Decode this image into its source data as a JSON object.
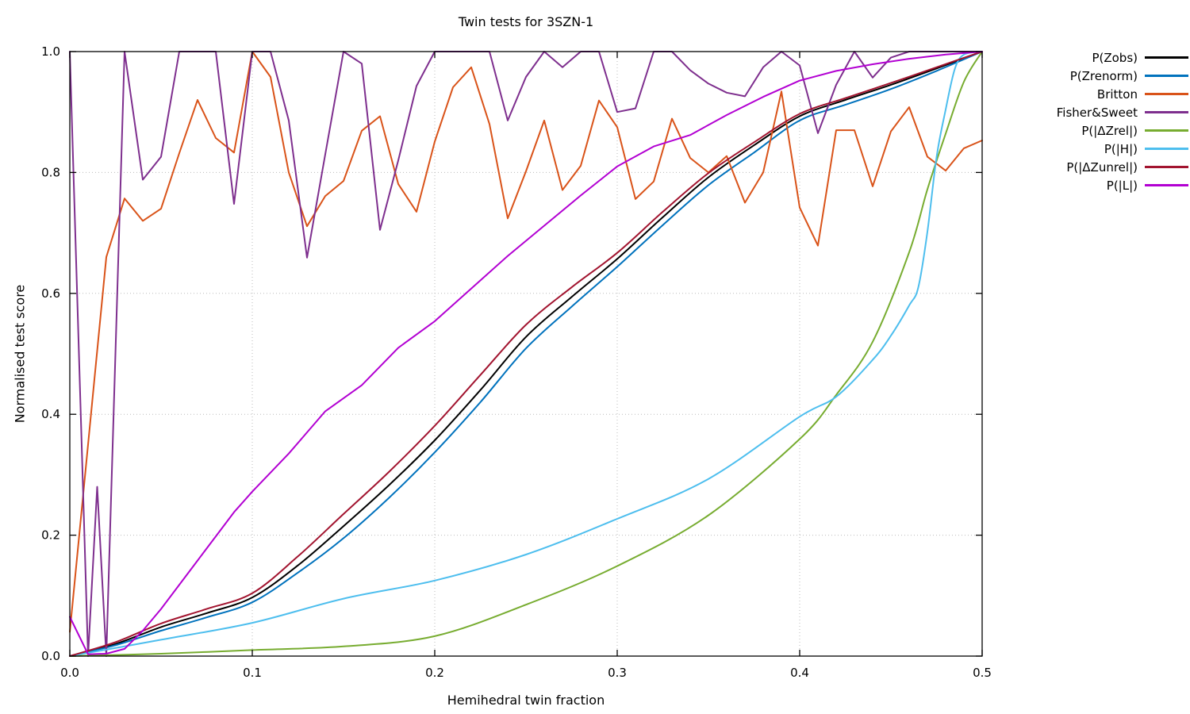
{
  "chart_data": {
    "type": "line",
    "title": "Twin tests for 3SZN-1",
    "xlabel": "Hemihedral twin fraction",
    "ylabel": "Normalised test score",
    "xlim": [
      0,
      0.5
    ],
    "ylim": [
      0,
      1
    ],
    "xtick_values": [
      0,
      0.1,
      0.2,
      0.3,
      0.4,
      0.5
    ],
    "xtick_labels": [
      "0.0",
      "0.1",
      "0.2",
      "0.3",
      "0.4",
      "0.5"
    ],
    "ytick_values": [
      0,
      0.2,
      0.4,
      0.6,
      0.8,
      1.0
    ],
    "ytick_labels": [
      "0.0",
      "0.2",
      "0.4",
      "0.6",
      "0.8",
      "1.0"
    ],
    "grid": true,
    "grid_style": "dotted",
    "grid_color": "#bbbbbb",
    "legend_position": "right-outside",
    "background": "#ffffff",
    "series": [
      {
        "name": "P(Zobs)",
        "color": "#000000",
        "smooth": true,
        "x": [
          0,
          0.025,
          0.05,
          0.075,
          0.1,
          0.125,
          0.15,
          0.175,
          0.2,
          0.225,
          0.25,
          0.275,
          0.3,
          0.325,
          0.35,
          0.375,
          0.4,
          0.425,
          0.45,
          0.475,
          0.5
        ],
        "y": [
          0,
          0.02,
          0.048,
          0.071,
          0.097,
          0.15,
          0.215,
          0.283,
          0.357,
          0.44,
          0.528,
          0.594,
          0.657,
          0.726,
          0.792,
          0.845,
          0.893,
          0.92,
          0.945,
          0.972,
          1.0
        ]
      },
      {
        "name": "P(Zrenorm)",
        "color": "#0072bd",
        "smooth": true,
        "x": [
          0,
          0.025,
          0.05,
          0.075,
          0.1,
          0.125,
          0.15,
          0.175,
          0.2,
          0.225,
          0.25,
          0.275,
          0.3,
          0.325,
          0.35,
          0.375,
          0.4,
          0.425,
          0.45,
          0.475,
          0.5
        ],
        "y": [
          0,
          0.018,
          0.042,
          0.064,
          0.089,
          0.138,
          0.195,
          0.262,
          0.337,
          0.42,
          0.509,
          0.578,
          0.644,
          0.713,
          0.779,
          0.833,
          0.886,
          0.912,
          0.938,
          0.968,
          1.0
        ]
      },
      {
        "name": "Britton",
        "color": "#d95319",
        "smooth": false,
        "x": [
          0,
          0.01,
          0.02,
          0.03,
          0.04,
          0.05,
          0.06,
          0.07,
          0.08,
          0.09,
          0.1,
          0.11,
          0.12,
          0.13,
          0.14,
          0.15,
          0.16,
          0.17,
          0.18,
          0.19,
          0.2,
          0.21,
          0.22,
          0.23,
          0.24,
          0.25,
          0.26,
          0.27,
          0.28,
          0.29,
          0.3,
          0.31,
          0.32,
          0.33,
          0.34,
          0.35,
          0.36,
          0.37,
          0.38,
          0.39,
          0.4,
          0.41,
          0.42,
          0.43,
          0.44,
          0.45,
          0.46,
          0.47,
          0.48,
          0.49,
          0.5
        ],
        "y": [
          0.04,
          0.35,
          0.66,
          0.757,
          0.72,
          0.74,
          0.832,
          0.92,
          0.857,
          0.833,
          1.0,
          0.958,
          0.8,
          0.711,
          0.761,
          0.786,
          0.869,
          0.893,
          0.781,
          0.735,
          0.851,
          0.941,
          0.974,
          0.88,
          0.724,
          0.802,
          0.886,
          0.771,
          0.811,
          0.919,
          0.875,
          0.756,
          0.785,
          0.889,
          0.824,
          0.8,
          0.827,
          0.75,
          0.8,
          0.934,
          0.742,
          0.679,
          0.87,
          0.87,
          0.777,
          0.868,
          0.908,
          0.826,
          0.803,
          0.84,
          0.853
        ]
      },
      {
        "name": "Fisher&Sweet",
        "color": "#7e2f8e",
        "smooth": false,
        "x": [
          0,
          0.01,
          0.015,
          0.02,
          0.03,
          0.04,
          0.05,
          0.06,
          0.07,
          0.08,
          0.09,
          0.1,
          0.11,
          0.12,
          0.13,
          0.14,
          0.15,
          0.16,
          0.17,
          0.18,
          0.19,
          0.2,
          0.21,
          0.22,
          0.23,
          0.24,
          0.25,
          0.26,
          0.27,
          0.28,
          0.29,
          0.3,
          0.31,
          0.32,
          0.33,
          0.34,
          0.35,
          0.36,
          0.37,
          0.38,
          0.39,
          0.4,
          0.41,
          0.42,
          0.43,
          0.44,
          0.45,
          0.46,
          0.47,
          0.48,
          0.49,
          0.5
        ],
        "y": [
          1.0,
          0.0,
          0.28,
          0.0,
          1.0,
          0.788,
          0.826,
          1.0,
          1.0,
          1.0,
          0.748,
          1.0,
          1.0,
          0.886,
          0.659,
          0.83,
          1.0,
          0.98,
          0.705,
          0.82,
          0.943,
          1.0,
          1.0,
          1.0,
          1.0,
          0.886,
          0.958,
          1.0,
          0.974,
          1.0,
          1.0,
          0.9,
          0.906,
          1.0,
          1.0,
          0.969,
          0.947,
          0.932,
          0.926,
          0.974,
          1.0,
          0.977,
          0.865,
          0.945,
          1.0,
          0.957,
          0.99,
          1.0,
          1.0,
          1.0,
          1.0,
          1.0
        ]
      },
      {
        "name": "P(|ΔZrel|)",
        "color": "#77ac30",
        "smooth": true,
        "x": [
          0,
          0.05,
          0.1,
          0.15,
          0.2,
          0.25,
          0.3,
          0.35,
          0.4,
          0.42,
          0.44,
          0.46,
          0.47,
          0.48,
          0.49,
          0.5
        ],
        "y": [
          0,
          0.004,
          0.01,
          0.016,
          0.033,
          0.085,
          0.149,
          0.233,
          0.359,
          0.432,
          0.52,
          0.668,
          0.772,
          0.864,
          0.95,
          1.0
        ]
      },
      {
        "name": "P(|H|)",
        "color": "#4dbeee",
        "smooth": true,
        "x": [
          0,
          0.05,
          0.1,
          0.15,
          0.2,
          0.25,
          0.3,
          0.35,
          0.4,
          0.42,
          0.44,
          0.45,
          0.46,
          0.465,
          0.47,
          0.475,
          0.48,
          0.485,
          0.49,
          0.5
        ],
        "y": [
          0,
          0.027,
          0.055,
          0.095,
          0.125,
          0.168,
          0.227,
          0.293,
          0.396,
          0.429,
          0.49,
          0.53,
          0.58,
          0.61,
          0.702,
          0.825,
          0.904,
          0.971,
          0.995,
          1.0
        ]
      },
      {
        "name": "P(|ΔZunrel|)",
        "color": "#a2142f",
        "smooth": true,
        "x": [
          0,
          0.025,
          0.05,
          0.075,
          0.1,
          0.125,
          0.15,
          0.175,
          0.2,
          0.225,
          0.25,
          0.275,
          0.3,
          0.325,
          0.35,
          0.375,
          0.4,
          0.425,
          0.45,
          0.475,
          0.5
        ],
        "y": [
          0,
          0.023,
          0.054,
          0.078,
          0.104,
          0.165,
          0.235,
          0.305,
          0.381,
          0.465,
          0.548,
          0.61,
          0.667,
          0.735,
          0.799,
          0.85,
          0.897,
          0.923,
          0.948,
          0.974,
          1.0
        ]
      },
      {
        "name": "P(|L|)",
        "color": "#b200d2",
        "smooth": false,
        "x": [
          0,
          0.01,
          0.02,
          0.03,
          0.04,
          0.05,
          0.06,
          0.07,
          0.08,
          0.09,
          0.1,
          0.12,
          0.14,
          0.16,
          0.18,
          0.2,
          0.22,
          0.24,
          0.26,
          0.28,
          0.3,
          0.32,
          0.34,
          0.36,
          0.38,
          0.4,
          0.42,
          0.44,
          0.46,
          0.48,
          0.5
        ],
        "y": [
          0.065,
          0.003,
          0.004,
          0.012,
          0.042,
          0.078,
          0.118,
          0.158,
          0.198,
          0.238,
          0.272,
          0.335,
          0.405,
          0.448,
          0.51,
          0.554,
          0.608,
          0.662,
          0.712,
          0.762,
          0.81,
          0.843,
          0.862,
          0.895,
          0.925,
          0.952,
          0.968,
          0.979,
          0.988,
          0.995,
          1.0
        ]
      }
    ]
  }
}
